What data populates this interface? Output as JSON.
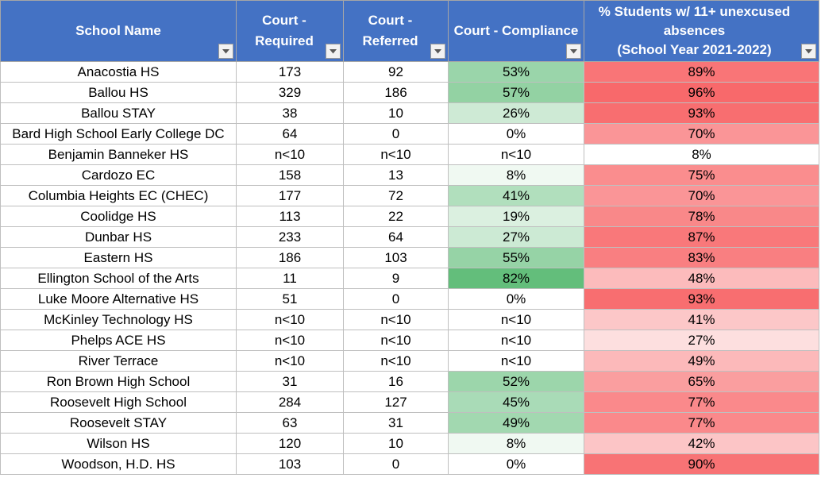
{
  "headers": {
    "school_name": "School Name",
    "court_required": [
      "Court -",
      "Required"
    ],
    "court_referred": [
      "Court -",
      "Referred"
    ],
    "court_compliance": "Court - Compliance",
    "pct_students": [
      "% Students w/ 11+ unexcused",
      "absences",
      "(School Year 2021-2022)"
    ]
  },
  "colors": {
    "header_bg": "#4472c4",
    "compliance_scale": [
      "#ffffff",
      "#63be7b"
    ],
    "pct_scale": [
      "#ffffff",
      "#f8696b"
    ]
  },
  "rows": [
    {
      "school": "Anacostia HS",
      "required": "173",
      "referred": "92",
      "compliance": "53%",
      "pct": "89%",
      "c_val": 53,
      "p_val": 89
    },
    {
      "school": "Ballou HS",
      "required": "329",
      "referred": "186",
      "compliance": "57%",
      "pct": "96%",
      "c_val": 57,
      "p_val": 96
    },
    {
      "school": "Ballou STAY",
      "required": "38",
      "referred": "10",
      "compliance": "26%",
      "pct": "93%",
      "c_val": 26,
      "p_val": 93
    },
    {
      "school": "Bard High School Early College DC",
      "required": "64",
      "referred": "0",
      "compliance": "0%",
      "pct": "70%",
      "c_val": 0,
      "p_val": 70
    },
    {
      "school": "Benjamin Banneker HS",
      "required": "n<10",
      "referred": "n<10",
      "compliance": "n<10",
      "pct": "8%",
      "c_val": null,
      "p_val": 8
    },
    {
      "school": "Cardozo EC",
      "required": "158",
      "referred": "13",
      "compliance": "8%",
      "pct": "75%",
      "c_val": 8,
      "p_val": 75
    },
    {
      "school": "Columbia Heights EC (CHEC)",
      "required": "177",
      "referred": "72",
      "compliance": "41%",
      "pct": "70%",
      "c_val": 41,
      "p_val": 70
    },
    {
      "school": "Coolidge HS",
      "required": "113",
      "referred": "22",
      "compliance": "19%",
      "pct": "78%",
      "c_val": 19,
      "p_val": 78
    },
    {
      "school": "Dunbar HS",
      "required": "233",
      "referred": "64",
      "compliance": "27%",
      "pct": "87%",
      "c_val": 27,
      "p_val": 87
    },
    {
      "school": "Eastern HS",
      "required": "186",
      "referred": "103",
      "compliance": "55%",
      "pct": "83%",
      "c_val": 55,
      "p_val": 83
    },
    {
      "school": "Ellington School of the Arts",
      "required": "11",
      "referred": "9",
      "compliance": "82%",
      "pct": "48%",
      "c_val": 82,
      "p_val": 48
    },
    {
      "school": "Luke Moore Alternative HS",
      "required": "51",
      "referred": "0",
      "compliance": "0%",
      "pct": "93%",
      "c_val": 0,
      "p_val": 93
    },
    {
      "school": "McKinley Technology HS",
      "required": "n<10",
      "referred": "n<10",
      "compliance": "n<10",
      "pct": "41%",
      "c_val": null,
      "p_val": 41
    },
    {
      "school": "Phelps ACE HS",
      "required": "n<10",
      "referred": "n<10",
      "compliance": "n<10",
      "pct": "27%",
      "c_val": null,
      "p_val": 27
    },
    {
      "school": "River Terrace",
      "required": "n<10",
      "referred": "n<10",
      "compliance": "n<10",
      "pct": "49%",
      "c_val": null,
      "p_val": 49
    },
    {
      "school": "Ron Brown High School",
      "required": "31",
      "referred": "16",
      "compliance": "52%",
      "pct": "65%",
      "c_val": 52,
      "p_val": 65
    },
    {
      "school": "Roosevelt High School",
      "required": "284",
      "referred": "127",
      "compliance": "45%",
      "pct": "77%",
      "c_val": 45,
      "p_val": 77
    },
    {
      "school": "Roosevelt STAY",
      "required": "63",
      "referred": "31",
      "compliance": "49%",
      "pct": "77%",
      "c_val": 49,
      "p_val": 77
    },
    {
      "school": "Wilson HS",
      "required": "120",
      "referred": "10",
      "compliance": "8%",
      "pct": "42%",
      "c_val": 8,
      "p_val": 42
    },
    {
      "school": "Woodson, H.D. HS",
      "required": "103",
      "referred": "0",
      "compliance": "0%",
      "pct": "90%",
      "c_val": 0,
      "p_val": 90
    }
  ]
}
